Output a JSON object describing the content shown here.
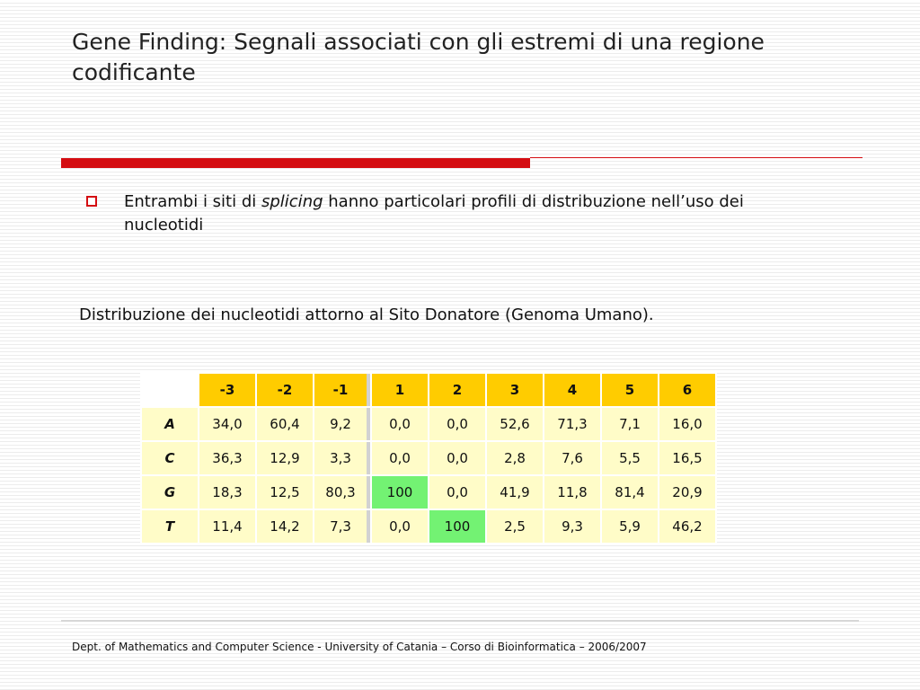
{
  "slide": {
    "title": "Gene Finding: Segnali associati con gli estremi di una regione codificante",
    "bullet": {
      "text_before": "Entrambi i siti di ",
      "text_italic": "splicing",
      "text_after": " hanno particolari profili di distribuzione nell’uso dei nucleotidi"
    },
    "caption": "Distribuzione dei nucleotidi attorno al Sito Donatore (Genoma Umano).",
    "footer": "Dept. of Mathematics and Computer Science - University of Catania – Corso di Bioinformatica – 2006/2007"
  },
  "table": {
    "columns": [
      "-3",
      "-2",
      "-1",
      "1",
      "2",
      "3",
      "4",
      "5",
      "6"
    ],
    "rows": [
      {
        "label": "A",
        "values": [
          "34,0",
          "60,4",
          "9,2",
          "0,0",
          "0,0",
          "52,6",
          "71,3",
          "7,1",
          "16,0"
        ]
      },
      {
        "label": "C",
        "values": [
          "36,3",
          "12,9",
          "3,3",
          "0,0",
          "0,0",
          "2,8",
          "7,6",
          "5,5",
          "16,5"
        ]
      },
      {
        "label": "G",
        "values": [
          "18,3",
          "12,5",
          "80,3",
          "100",
          "0,0",
          "41,9",
          "11,8",
          "81,4",
          "20,9"
        ]
      },
      {
        "label": "T",
        "values": [
          "11,4",
          "14,2",
          "7,3",
          "0,0",
          "100",
          "2,5",
          "9,3",
          "5,9",
          "46,2"
        ]
      }
    ],
    "highlight_color": "#73f273",
    "header_color": "#ffcc00",
    "cell_color": "#fffcc8"
  },
  "colors": {
    "accent_red": "#d40d12"
  }
}
